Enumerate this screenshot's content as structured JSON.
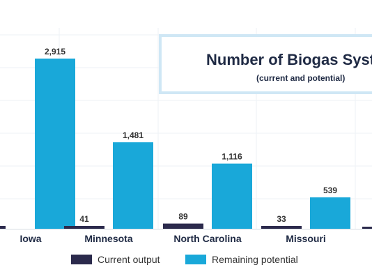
{
  "chart_data": {
    "type": "bar",
    "title": "Number of Biogas Syst",
    "subtitle": "(current and potential)",
    "categories": [
      "Iowa",
      "Minnesota",
      "North Carolina",
      "Missouri"
    ],
    "series": [
      {
        "name": "Current output",
        "values": [
          null,
          41,
          89,
          33
        ],
        "color": "#2b2a4c"
      },
      {
        "name": "Remaining potential",
        "values": [
          2915,
          1481,
          1116,
          539
        ],
        "color": "#19a8d9"
      }
    ],
    "value_labels": [
      [
        null,
        "41",
        "89",
        "33"
      ],
      [
        "2,915",
        "1,481",
        "1,116",
        "539"
      ]
    ],
    "ylim": [
      0,
      3500
    ],
    "grid": true,
    "legend_position": "bottom"
  }
}
